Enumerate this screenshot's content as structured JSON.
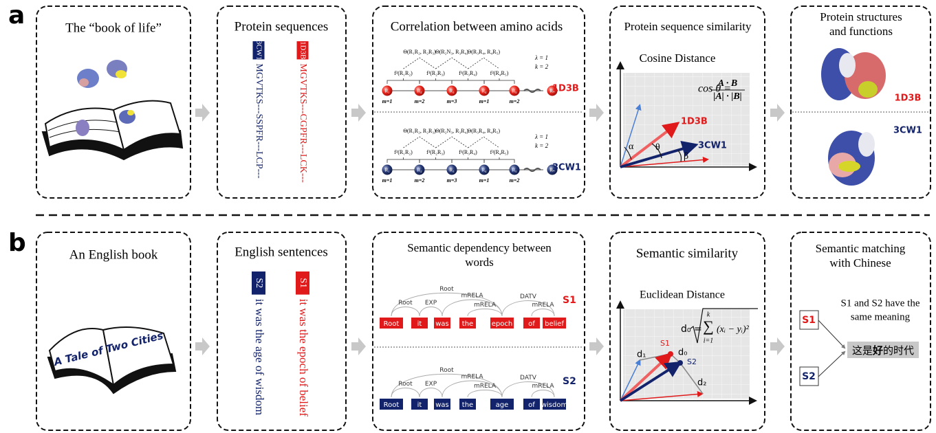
{
  "panel_a": {
    "label": "a",
    "book": {
      "title": "The “book of life”"
    },
    "sequences": {
      "title": "Protein sequences",
      "items": [
        {
          "id": "3CW1",
          "text": "MGVTKS---SSPFR---LCP---"
        },
        {
          "id": "1D3B",
          "text": "MGVTKS---CGPFR---LCK---"
        }
      ]
    },
    "correlation": {
      "title": "Correlation between amino acids",
      "chains": [
        {
          "name": "1D3B",
          "lambda": "λ = 1",
          "k": "k = 2",
          "thetas": [
            "Θ(R₁R₂, R₂R₃)",
            "Θ(R₂N₃, R₃R₄)",
            "Θ(R₃R₄, R₄R₅)"
          ],
          "fs": [
            "f²(R₁R₂)",
            "f³(R₂R₃)",
            "f¹(R₃R₄)",
            "f²(R₄R₅)"
          ],
          "nodes": [
            "R₁",
            "R₂",
            "R₃",
            "R₄",
            "R₅",
            "Rₙ"
          ],
          "ms": [
            "m=1",
            "m=2",
            "m=3",
            "m=1",
            "m=2"
          ]
        },
        {
          "name": "3CW1",
          "lambda": "λ = 1",
          "k": "k = 2",
          "thetas": [
            "Θ(R₁R₂, R₂R₃)",
            "Θ(R₂N₃, R₃R₄)",
            "Θ(R₃R₄, R₄R₅)"
          ],
          "fs": [
            "f²(R₁R₂)",
            "f³(R₂R₃)",
            "f¹(R₃R₄)",
            "f²(R₄R₅)"
          ],
          "nodes": [
            "R₁",
            "R₂",
            "R₃",
            "R₄",
            "R₅",
            "Rₙ"
          ],
          "ms": [
            "m=1",
            "m=2",
            "m=3",
            "m=1",
            "m=2"
          ]
        }
      ]
    },
    "similarity": {
      "title": "Protein sequence similarity",
      "subtitle": "Cosine Distance",
      "formula": {
        "lhs": "cos θ =",
        "num": "A · B",
        "den": "|A| · |B|"
      },
      "labels": {
        "a": "1D3B",
        "b": "3CW1",
        "alpha": "α",
        "theta": "θ",
        "beta": "β"
      }
    },
    "result": {
      "title": [
        "Protein structures",
        "and functions"
      ],
      "labels": [
        "1D3B",
        "3CW1"
      ]
    }
  },
  "panel_b": {
    "label": "b",
    "book": {
      "title": "An English book",
      "cover": "A Tale of Two Cities"
    },
    "sentences": {
      "title": "English sentences",
      "items": [
        {
          "id": "S2",
          "text": "it was the age of wisdom"
        },
        {
          "id": "S1",
          "text": "it was the epoch of belief"
        }
      ]
    },
    "dependency": {
      "title": [
        "Semantic dependency between",
        "words"
      ],
      "sentences": [
        {
          "name": "S1",
          "words": [
            "Root",
            "it",
            "was",
            "the",
            "epoch",
            "of",
            "belief"
          ],
          "arcs": [
            "Root",
            "Root",
            "EXP",
            "mRELA",
            "mRELA",
            "DATV",
            "mRELA"
          ]
        },
        {
          "name": "S2",
          "words": [
            "Root",
            "it",
            "was",
            "the",
            "age",
            "of",
            "wisdom"
          ],
          "arcs": [
            "Root",
            "Root",
            "EXP",
            "mRELA",
            "mRELA",
            "DATV",
            "mRELA"
          ]
        }
      ]
    },
    "similarity": {
      "title": "Semantic similarity",
      "subtitle": "Euclidean Distance",
      "formula": {
        "lhs": "d₀ =",
        "sum": "∑",
        "upper": "k",
        "lower": "i=1",
        "term": "(xᵢ − yᵢ)²"
      },
      "labels": {
        "d1": "d₁",
        "d0": "d₀",
        "d2": "d₂",
        "s1": "S1",
        "s2": "S2"
      }
    },
    "matching": {
      "title": [
        "Semantic matching",
        "with Chinese"
      ],
      "s1": "S1",
      "s2": "S2",
      "note": [
        "S1 and S2 have the",
        "same meaning"
      ],
      "chinese": [
        "这是",
        "好",
        "的时代"
      ]
    }
  }
}
